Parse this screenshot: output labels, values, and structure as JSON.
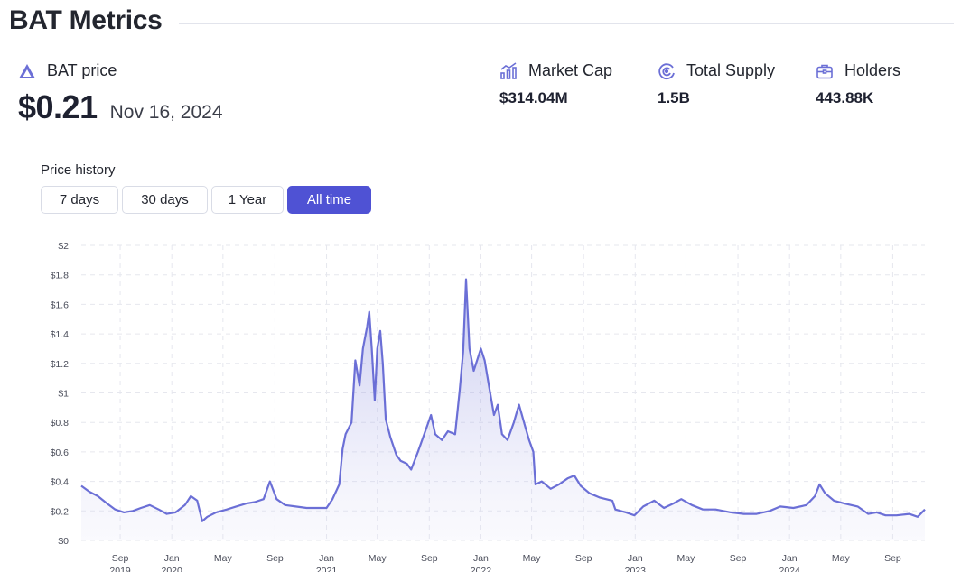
{
  "header": {
    "title": "BAT Metrics"
  },
  "price": {
    "label": "BAT price",
    "value": "$0.21",
    "date": "Nov 16, 2024"
  },
  "metrics": [
    {
      "label": "Market Cap",
      "value": "$314.04M",
      "icon": "chart-bars-icon"
    },
    {
      "label": "Total Supply",
      "value": "1.5B",
      "icon": "supply-gauge-icon"
    },
    {
      "label": "Holders",
      "value": "443.88K",
      "icon": "briefcase-icon"
    }
  ],
  "history": {
    "label": "Price history",
    "ranges": [
      "7 days",
      "30 days",
      "1 Year",
      "All time"
    ],
    "selected": "All time"
  },
  "colors": {
    "accent": "#4f52d4",
    "line": "#6b6fd6",
    "fill": "#dcdcf5"
  },
  "chart_data": {
    "type": "area",
    "title": "",
    "xlabel": "",
    "ylabel": "",
    "ylim": [
      0,
      2
    ],
    "yticks": [
      "$0",
      "$0.2",
      "$0.4",
      "$0.6",
      "$0.8",
      "$1",
      "$1.2",
      "$1.4",
      "$1.6",
      "$1.8",
      "$2"
    ],
    "xlim": [
      "2019-06-01",
      "2024-11-16"
    ],
    "xticks": [
      {
        "date": "2019-09-01",
        "label": "Sep",
        "year": "2019"
      },
      {
        "date": "2020-01-01",
        "label": "Jan",
        "year": "2020"
      },
      {
        "date": "2020-05-01",
        "label": "May",
        "year": ""
      },
      {
        "date": "2020-09-01",
        "label": "Sep",
        "year": ""
      },
      {
        "date": "2021-01-01",
        "label": "Jan",
        "year": "2021"
      },
      {
        "date": "2021-05-01",
        "label": "May",
        "year": ""
      },
      {
        "date": "2021-09-01",
        "label": "Sep",
        "year": ""
      },
      {
        "date": "2022-01-01",
        "label": "Jan",
        "year": "2022"
      },
      {
        "date": "2022-05-01",
        "label": "May",
        "year": ""
      },
      {
        "date": "2022-09-01",
        "label": "Sep",
        "year": ""
      },
      {
        "date": "2023-01-01",
        "label": "Jan",
        "year": "2023"
      },
      {
        "date": "2023-05-01",
        "label": "May",
        "year": ""
      },
      {
        "date": "2023-09-01",
        "label": "Sep",
        "year": ""
      },
      {
        "date": "2024-01-01",
        "label": "Jan",
        "year": "2024"
      },
      {
        "date": "2024-05-01",
        "label": "May",
        "year": ""
      },
      {
        "date": "2024-09-01",
        "label": "Sep",
        "year": ""
      }
    ],
    "grid": true,
    "series": [
      {
        "name": "",
        "points": [
          [
            "2019-06-01",
            0.37
          ],
          [
            "2019-06-20",
            0.33
          ],
          [
            "2019-07-10",
            0.3
          ],
          [
            "2019-08-01",
            0.25
          ],
          [
            "2019-08-20",
            0.21
          ],
          [
            "2019-09-10",
            0.19
          ],
          [
            "2019-10-01",
            0.2
          ],
          [
            "2019-10-20",
            0.22
          ],
          [
            "2019-11-10",
            0.24
          ],
          [
            "2019-12-01",
            0.21
          ],
          [
            "2019-12-20",
            0.18
          ],
          [
            "2020-01-10",
            0.19
          ],
          [
            "2020-02-01",
            0.24
          ],
          [
            "2020-02-15",
            0.3
          ],
          [
            "2020-03-01",
            0.27
          ],
          [
            "2020-03-13",
            0.13
          ],
          [
            "2020-03-25",
            0.16
          ],
          [
            "2020-04-15",
            0.19
          ],
          [
            "2020-05-10",
            0.21
          ],
          [
            "2020-06-01",
            0.23
          ],
          [
            "2020-06-25",
            0.25
          ],
          [
            "2020-07-15",
            0.26
          ],
          [
            "2020-08-05",
            0.28
          ],
          [
            "2020-08-20",
            0.4
          ],
          [
            "2020-09-05",
            0.28
          ],
          [
            "2020-09-25",
            0.24
          ],
          [
            "2020-10-20",
            0.23
          ],
          [
            "2020-11-15",
            0.22
          ],
          [
            "2020-12-10",
            0.22
          ],
          [
            "2021-01-01",
            0.22
          ],
          [
            "2021-01-15",
            0.28
          ],
          [
            "2021-01-31",
            0.38
          ],
          [
            "2021-02-08",
            0.62
          ],
          [
            "2021-02-15",
            0.72
          ],
          [
            "2021-03-01",
            0.8
          ],
          [
            "2021-03-10",
            1.22
          ],
          [
            "2021-03-20",
            1.05
          ],
          [
            "2021-03-28",
            1.3
          ],
          [
            "2021-04-07",
            1.45
          ],
          [
            "2021-04-12",
            1.55
          ],
          [
            "2021-04-18",
            1.3
          ],
          [
            "2021-04-25",
            0.95
          ],
          [
            "2021-05-01",
            1.3
          ],
          [
            "2021-05-08",
            1.42
          ],
          [
            "2021-05-14",
            1.2
          ],
          [
            "2021-05-21",
            0.82
          ],
          [
            "2021-06-01",
            0.7
          ],
          [
            "2021-06-15",
            0.58
          ],
          [
            "2021-06-25",
            0.54
          ],
          [
            "2021-07-10",
            0.52
          ],
          [
            "2021-07-20",
            0.48
          ],
          [
            "2021-08-05",
            0.6
          ],
          [
            "2021-08-20",
            0.72
          ],
          [
            "2021-09-05",
            0.85
          ],
          [
            "2021-09-15",
            0.72
          ],
          [
            "2021-10-01",
            0.68
          ],
          [
            "2021-10-15",
            0.74
          ],
          [
            "2021-11-01",
            0.72
          ],
          [
            "2021-11-12",
            1.02
          ],
          [
            "2021-11-20",
            1.28
          ],
          [
            "2021-11-27",
            1.77
          ],
          [
            "2021-12-05",
            1.3
          ],
          [
            "2021-12-15",
            1.15
          ],
          [
            "2022-01-01",
            1.3
          ],
          [
            "2022-01-10",
            1.22
          ],
          [
            "2022-01-20",
            1.05
          ],
          [
            "2022-02-01",
            0.85
          ],
          [
            "2022-02-10",
            0.92
          ],
          [
            "2022-02-20",
            0.72
          ],
          [
            "2022-03-05",
            0.68
          ],
          [
            "2022-03-20",
            0.8
          ],
          [
            "2022-04-01",
            0.92
          ],
          [
            "2022-04-15",
            0.78
          ],
          [
            "2022-04-25",
            0.68
          ],
          [
            "2022-05-05",
            0.6
          ],
          [
            "2022-05-10",
            0.38
          ],
          [
            "2022-05-25",
            0.4
          ],
          [
            "2022-06-15",
            0.35
          ],
          [
            "2022-07-05",
            0.38
          ],
          [
            "2022-07-25",
            0.42
          ],
          [
            "2022-08-10",
            0.44
          ],
          [
            "2022-08-25",
            0.37
          ],
          [
            "2022-09-15",
            0.32
          ],
          [
            "2022-10-10",
            0.29
          ],
          [
            "2022-11-08",
            0.27
          ],
          [
            "2022-11-15",
            0.21
          ],
          [
            "2022-12-10",
            0.19
          ],
          [
            "2022-12-30",
            0.17
          ],
          [
            "2023-01-20",
            0.23
          ],
          [
            "2023-02-15",
            0.27
          ],
          [
            "2023-03-10",
            0.22
          ],
          [
            "2023-04-01",
            0.25
          ],
          [
            "2023-04-20",
            0.28
          ],
          [
            "2023-05-15",
            0.24
          ],
          [
            "2023-06-10",
            0.21
          ],
          [
            "2023-07-10",
            0.21
          ],
          [
            "2023-08-15",
            0.19
          ],
          [
            "2023-09-15",
            0.18
          ],
          [
            "2023-10-15",
            0.18
          ],
          [
            "2023-11-15",
            0.2
          ],
          [
            "2023-12-10",
            0.23
          ],
          [
            "2024-01-10",
            0.22
          ],
          [
            "2024-02-10",
            0.24
          ],
          [
            "2024-03-01",
            0.3
          ],
          [
            "2024-03-12",
            0.38
          ],
          [
            "2024-03-25",
            0.32
          ],
          [
            "2024-04-15",
            0.27
          ],
          [
            "2024-05-10",
            0.25
          ],
          [
            "2024-06-10",
            0.23
          ],
          [
            "2024-07-05",
            0.18
          ],
          [
            "2024-07-25",
            0.19
          ],
          [
            "2024-08-15",
            0.17
          ],
          [
            "2024-09-10",
            0.17
          ],
          [
            "2024-10-10",
            0.18
          ],
          [
            "2024-10-30",
            0.16
          ],
          [
            "2024-11-16",
            0.21
          ]
        ]
      }
    ]
  }
}
